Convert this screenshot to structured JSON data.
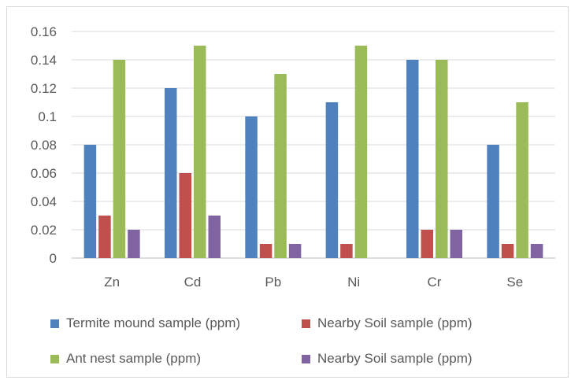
{
  "chart_data": {
    "type": "bar",
    "categories": [
      "Zn",
      "Cd",
      "Pb",
      "Ni",
      "Cr",
      "Se"
    ],
    "series": [
      {
        "name": "Termite mound sample (ppm)",
        "color": "#4f81bd",
        "values": [
          0.08,
          0.12,
          0.1,
          0.11,
          0.14,
          0.08
        ]
      },
      {
        "name": "Nearby Soil sample (ppm)",
        "color": "#c0504d",
        "values": [
          0.03,
          0.06,
          0.01,
          0.01,
          0.02,
          0.01
        ]
      },
      {
        "name": "Ant nest sample (ppm)",
        "color": "#9bbb59",
        "values": [
          0.14,
          0.15,
          0.13,
          0.15,
          0.14,
          0.11
        ]
      },
      {
        "name": "Nearby Soil sample (ppm)",
        "color": "#8064a2",
        "values": [
          0.02,
          0.03,
          0.01,
          0,
          0.02,
          0.01
        ]
      }
    ],
    "yticks": [
      "0",
      "0.02",
      "0.04",
      "0.06",
      "0.08",
      "0.1",
      "0.12",
      "0.14",
      "0.16"
    ],
    "ylim": [
      0,
      0.16
    ],
    "grid": true,
    "legend_position": "bottom"
  }
}
